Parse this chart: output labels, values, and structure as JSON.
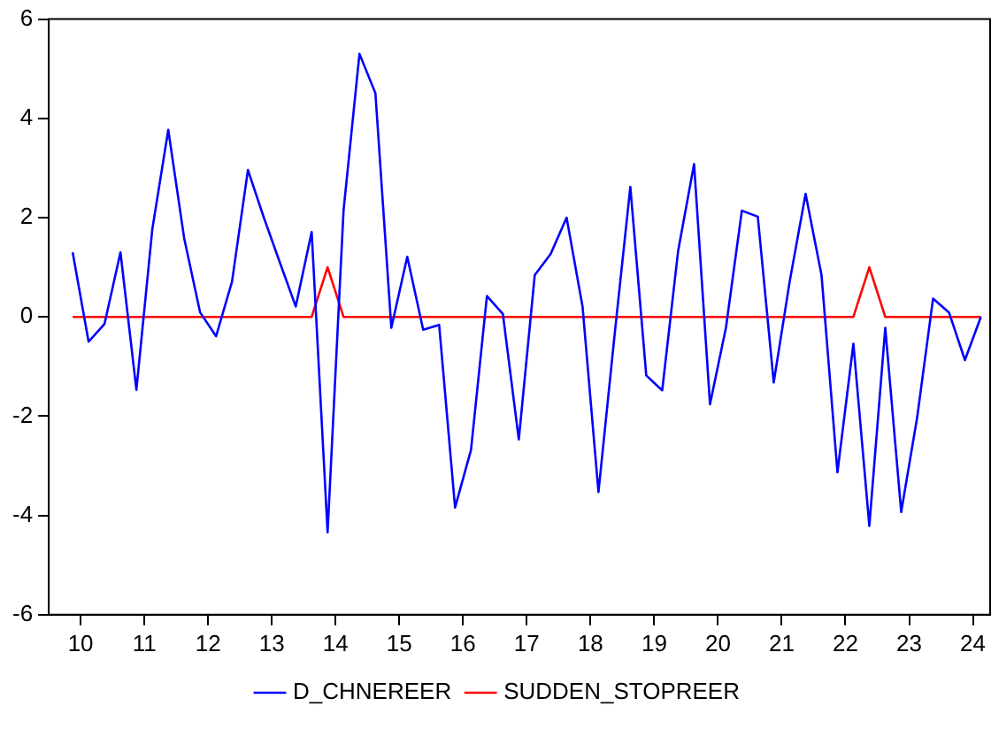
{
  "chart_data": {
    "type": "line",
    "x": [
      10.375,
      10.625,
      10.875,
      11.125,
      11.375,
      11.625,
      11.875,
      12.125,
      12.375,
      12.625,
      12.875,
      13.125,
      13.375,
      13.625,
      13.875,
      14.125,
      14.375,
      14.625,
      14.875,
      15.125,
      15.375,
      15.625,
      15.875,
      16.125,
      16.375,
      16.625,
      16.875,
      17.125,
      17.375,
      17.625,
      17.875,
      18.125,
      18.375,
      18.625,
      18.875,
      19.125,
      19.375,
      19.625,
      19.875,
      20.125,
      20.375,
      20.625,
      20.875,
      21.125,
      21.375,
      21.625,
      21.875,
      22.125,
      22.375,
      22.625,
      22.875,
      23.125,
      23.375,
      23.625,
      23.875,
      24.125,
      24.375,
      24.625
    ],
    "series": [
      {
        "name": "D_CHNEREER",
        "color": "#0000ff",
        "values": [
          1.3,
          -0.5,
          -0.14,
          1.3,
          -1.47,
          1.77,
          3.77,
          1.58,
          0.09,
          -0.39,
          0.71,
          2.96,
          2.0,
          1.1,
          0.21,
          1.71,
          -4.34,
          2.14,
          5.3,
          4.51,
          -0.22,
          1.21,
          -0.26,
          -0.16,
          -3.84,
          -2.68,
          0.42,
          0.06,
          -2.47,
          0.84,
          1.27,
          2.0,
          0.21,
          -3.53,
          -0.4,
          2.62,
          -1.18,
          -1.48,
          1.33,
          3.08,
          -1.76,
          -0.22,
          2.14,
          2.02,
          -1.32,
          0.71,
          2.48,
          0.84,
          -3.13,
          -0.54,
          -4.21,
          -0.22,
          -3.93,
          -2.03,
          0.37,
          0.09,
          -0.87,
          0.0
        ]
      },
      {
        "name": "SUDDEN_STOPREER",
        "color": "#ff0000",
        "values": [
          0,
          0,
          0,
          0,
          0,
          0,
          0,
          0,
          0,
          0,
          0,
          0,
          0,
          0,
          0,
          0,
          1,
          0,
          0,
          0,
          0,
          0,
          0,
          0,
          0,
          0,
          0,
          0,
          0,
          0,
          0,
          0,
          0,
          0,
          0,
          0,
          0,
          0,
          0,
          0,
          0,
          0,
          0,
          0,
          0,
          0,
          0,
          0,
          0,
          0,
          1,
          0,
          0,
          0,
          0,
          0,
          0,
          0
        ]
      }
    ],
    "xlim": [
      10,
      24.77
    ],
    "xticks": [
      {
        "value": 10.5,
        "label": "10"
      },
      {
        "value": 11.5,
        "label": "11"
      },
      {
        "value": 12.5,
        "label": "12"
      },
      {
        "value": 13.5,
        "label": "13"
      },
      {
        "value": 14.5,
        "label": "14"
      },
      {
        "value": 15.5,
        "label": "15"
      },
      {
        "value": 16.5,
        "label": "16"
      },
      {
        "value": 17.5,
        "label": "17"
      },
      {
        "value": 18.5,
        "label": "18"
      },
      {
        "value": 19.5,
        "label": "19"
      },
      {
        "value": 20.5,
        "label": "20"
      },
      {
        "value": 21.5,
        "label": "21"
      },
      {
        "value": 22.5,
        "label": "22"
      },
      {
        "value": 23.5,
        "label": "23"
      },
      {
        "value": 24.5,
        "label": "24"
      }
    ],
    "ylim": [
      -6,
      6
    ],
    "yticks": [
      -6,
      -4,
      -2,
      0,
      2,
      4,
      6
    ],
    "grid": false,
    "legend": "bottom",
    "marker": "none",
    "line_style": "solid"
  }
}
